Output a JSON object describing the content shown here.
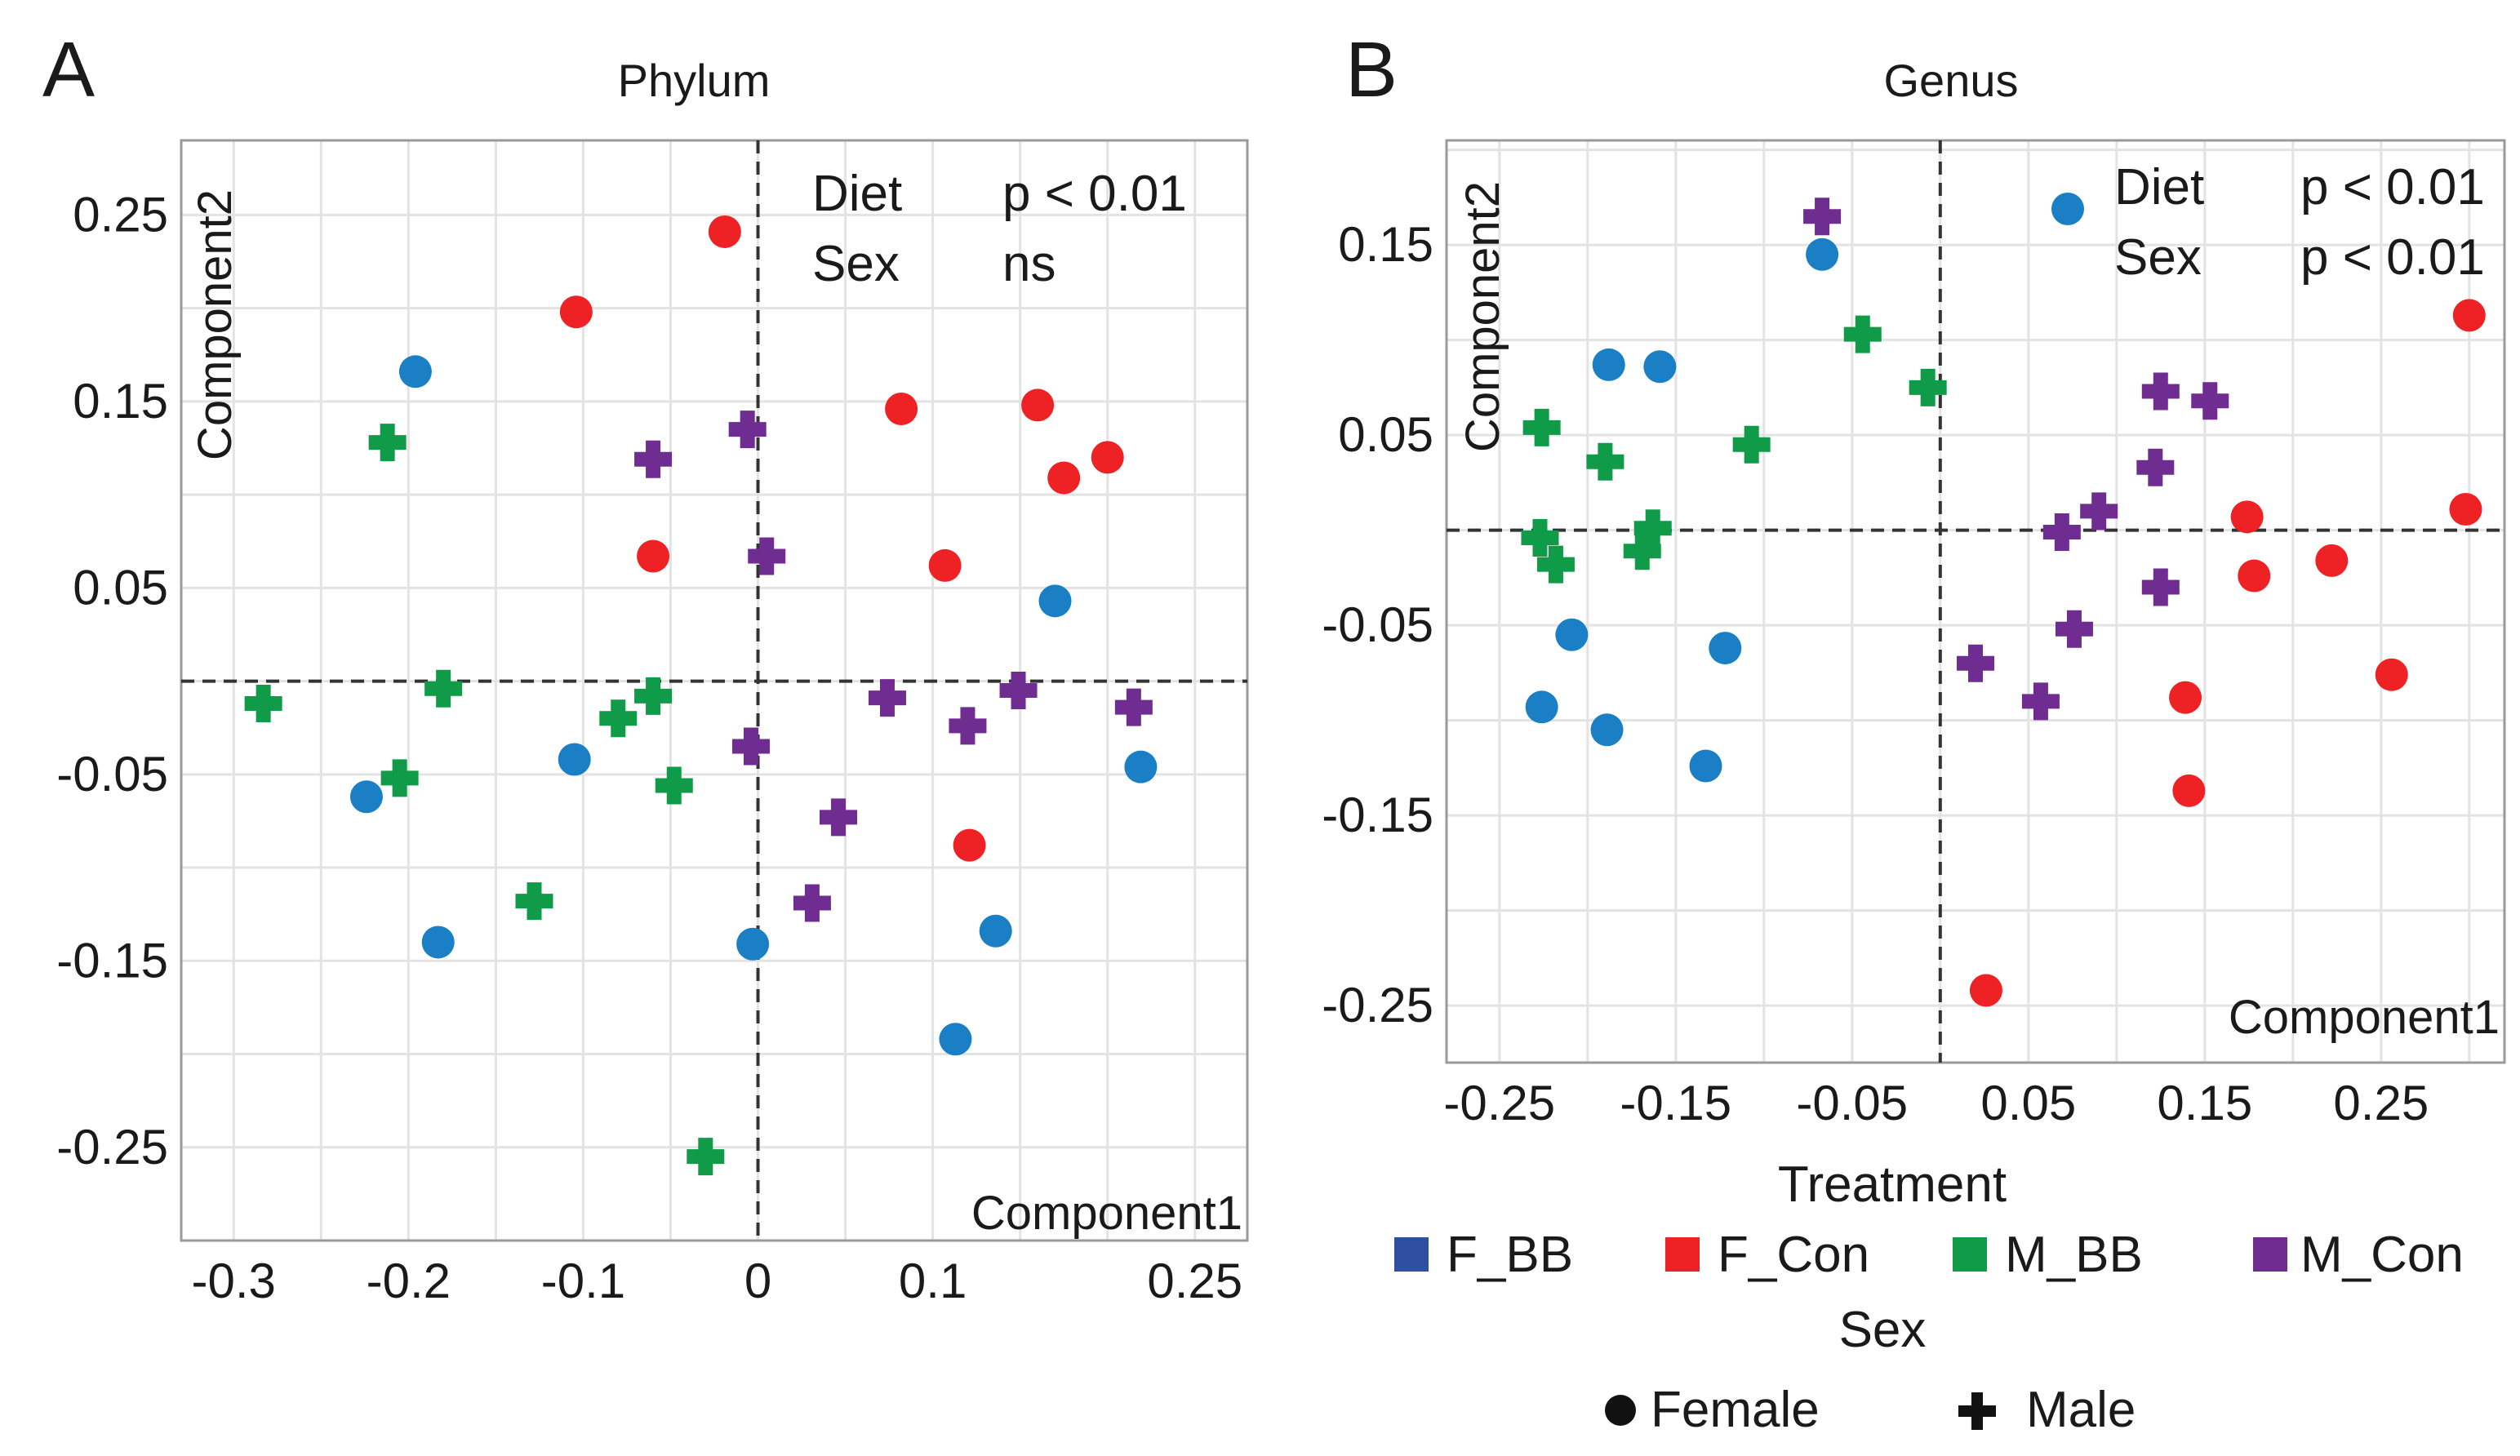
{
  "colors": {
    "F_BB": "#1a7fc4",
    "F_Con": "#ee2224",
    "M_BB": "#0f9b48",
    "M_Con": "#6f2c91",
    "legend_F_BB": "#2e4fa2",
    "grid": "#e3e3e3",
    "axis": "#9a9a9a"
  },
  "legend": {
    "treatment_title": "Treatment",
    "treatment_items": [
      "F_BB",
      "F_Con",
      "M_BB",
      "M_Con"
    ],
    "sex_title": "Sex",
    "sex_items": [
      {
        "label": "Female",
        "marker": "circle-icon"
      },
      {
        "label": "Male",
        "marker": "plus-icon"
      }
    ]
  },
  "chart_data": [
    {
      "type": "scatter",
      "panel_label": "A",
      "title": "Phylum",
      "xlabel": "Component1",
      "ylabel": "Component2",
      "xlim": [
        -0.33,
        0.28
      ],
      "ylim": [
        -0.3,
        0.29
      ],
      "xticks": [
        -0.3,
        -0.2,
        -0.1,
        0,
        0.1,
        0.25
      ],
      "xtick_labels": [
        "-0.3",
        "-0.2",
        "-0.1",
        "0",
        "0.1",
        "0.25"
      ],
      "yticks": [
        0.25,
        0.15,
        0.05,
        -0.05,
        -0.15,
        -0.25
      ],
      "ytick_labels": [
        "0.25",
        "0.15",
        "0.05",
        "-0.05",
        "-0.15",
        "-0.25"
      ],
      "stats": [
        {
          "label": "Diet",
          "value": "p < 0.01"
        },
        {
          "label": "Sex",
          "value": "ns"
        }
      ],
      "series": [
        {
          "name": "F_BB",
          "marker": "circle",
          "points": [
            [
              -0.196,
              0.166
            ],
            [
              0.17,
              0.043
            ],
            [
              -0.105,
              -0.042
            ],
            [
              -0.224,
              -0.062
            ],
            [
              0.219,
              -0.046
            ],
            [
              -0.183,
              -0.14
            ],
            [
              -0.003,
              -0.141
            ],
            [
              0.136,
              -0.134
            ],
            [
              0.113,
              -0.192
            ]
          ]
        },
        {
          "name": "F_Con",
          "marker": "circle",
          "points": [
            [
              -0.019,
              0.241
            ],
            [
              -0.104,
              0.198
            ],
            [
              0.082,
              0.146
            ],
            [
              0.16,
              0.148
            ],
            [
              0.175,
              0.109
            ],
            [
              0.2,
              0.12
            ],
            [
              -0.06,
              0.067
            ],
            [
              0.107,
              0.062
            ],
            [
              0.121,
              -0.088
            ]
          ]
        },
        {
          "name": "M_BB",
          "marker": "plus",
          "points": [
            [
              -0.212,
              0.128
            ],
            [
              -0.283,
              -0.012
            ],
            [
              -0.18,
              -0.004
            ],
            [
              -0.08,
              -0.02
            ],
            [
              -0.06,
              -0.008
            ],
            [
              -0.205,
              -0.052
            ],
            [
              -0.048,
              -0.056
            ],
            [
              -0.128,
              -0.118
            ],
            [
              -0.03,
              -0.255
            ]
          ]
        },
        {
          "name": "M_Con",
          "marker": "plus",
          "points": [
            [
              -0.06,
              0.119
            ],
            [
              -0.006,
              0.135
            ],
            [
              0.005,
              0.067
            ],
            [
              0.074,
              -0.009
            ],
            [
              0.12,
              -0.024
            ],
            [
              0.149,
              -0.005
            ],
            [
              0.215,
              -0.014
            ],
            [
              -0.004,
              -0.035
            ],
            [
              0.046,
              -0.073
            ],
            [
              0.031,
              -0.119
            ]
          ]
        }
      ]
    },
    {
      "type": "scatter",
      "panel_label": "B",
      "title": "Genus",
      "xlabel": "Component1",
      "ylabel": "Component2",
      "xlim": [
        -0.28,
        0.32
      ],
      "ylim": [
        -0.28,
        0.205
      ],
      "xticks": [
        -0.25,
        -0.15,
        -0.05,
        0.05,
        0.15,
        0.25
      ],
      "xtick_labels": [
        "-0.25",
        "-0.15",
        "-0.05",
        "0.05",
        "0.15",
        "0.25"
      ],
      "yticks": [
        0.15,
        0.05,
        -0.05,
        -0.15,
        -0.25
      ],
      "ytick_labels": [
        "0.15",
        "0.05",
        "-0.05",
        "-0.15",
        "-0.25"
      ],
      "stats": [
        {
          "label": "Diet",
          "value": "p < 0.01"
        },
        {
          "label": "Sex",
          "value": "p < 0.01"
        }
      ],
      "series": [
        {
          "name": "F_BB",
          "marker": "circle",
          "points": [
            [
              -0.067,
              0.145
            ],
            [
              -0.188,
              0.087
            ],
            [
              -0.159,
              0.086
            ],
            [
              -0.209,
              -0.055
            ],
            [
              -0.122,
              -0.062
            ],
            [
              -0.226,
              -0.093
            ],
            [
              -0.189,
              -0.105
            ],
            [
              -0.133,
              -0.124
            ]
          ]
        },
        {
          "name": "F_Con",
          "marker": "circle",
          "points": [
            [
              0.3,
              0.113
            ],
            [
              0.298,
              0.011
            ],
            [
              0.174,
              0.007
            ],
            [
              0.178,
              -0.024
            ],
            [
              0.222,
              -0.016
            ],
            [
              0.256,
              -0.076
            ],
            [
              0.139,
              -0.088
            ],
            [
              0.141,
              -0.137
            ],
            [
              0.026,
              -0.242
            ]
          ]
        },
        {
          "name": "M_BB",
          "marker": "plus",
          "points": [
            [
              -0.226,
              0.054
            ],
            [
              -0.044,
              0.103
            ],
            [
              -0.007,
              0.075
            ],
            [
              -0.107,
              0.045
            ],
            [
              -0.19,
              0.036
            ],
            [
              -0.163,
              0.001
            ],
            [
              -0.227,
              -0.004
            ],
            [
              -0.169,
              -0.011
            ],
            [
              -0.218,
              -0.018
            ]
          ]
        },
        {
          "name": "M_Con",
          "marker": "plus",
          "points": [
            [
              -0.067,
              0.165
            ],
            [
              0.125,
              0.073
            ],
            [
              0.153,
              0.068
            ],
            [
              0.122,
              0.033
            ],
            [
              0.09,
              0.01
            ],
            [
              0.069,
              -0.001
            ],
            [
              0.125,
              -0.03
            ],
            [
              0.076,
              -0.052
            ],
            [
              0.02,
              -0.07
            ],
            [
              0.057,
              -0.09
            ]
          ]
        }
      ]
    }
  ]
}
